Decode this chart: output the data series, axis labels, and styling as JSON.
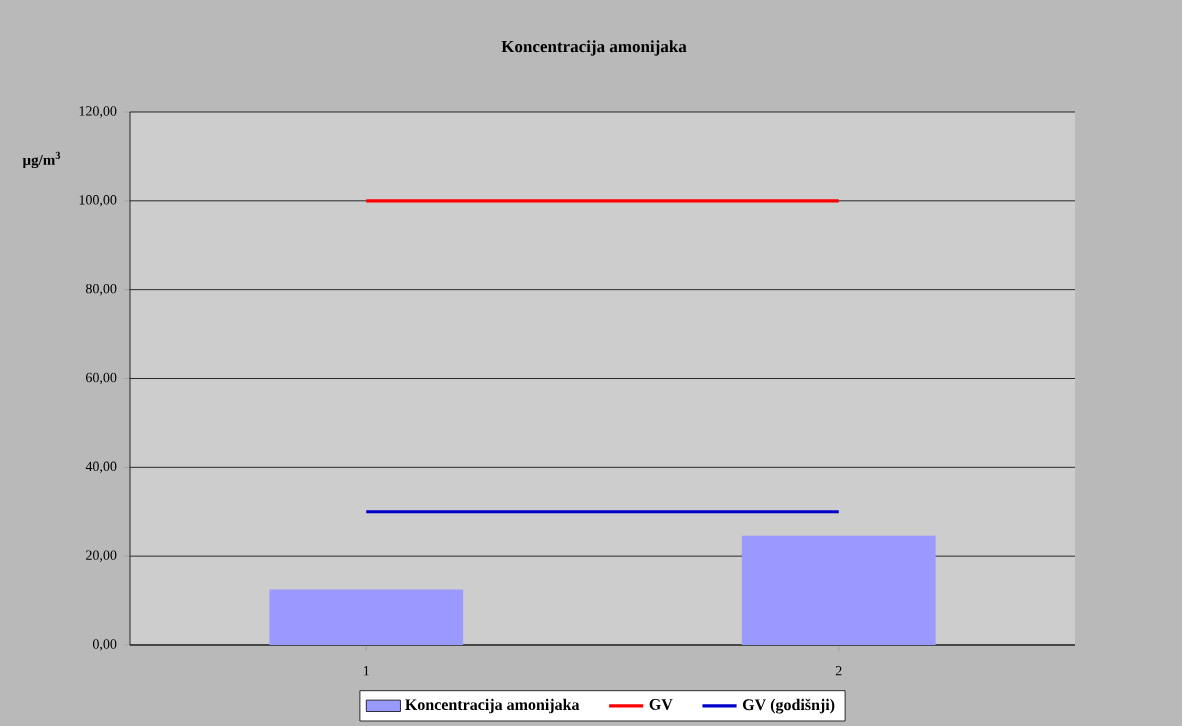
{
  "chart_data": {
    "type": "bar",
    "title": "Koncentracija amonijaka",
    "ylabel": "µg/m$^{3}$",
    "categories": [
      "1",
      "2"
    ],
    "series": [
      {
        "name": "Koncentracija amonijaka",
        "color": "#9999ff",
        "values": [
          12.5,
          24.6
        ]
      },
      {
        "name": "GV",
        "type": "line",
        "color": "#ff0000",
        "values": [
          100,
          100
        ]
      },
      {
        "name": "GV (godišnji)",
        "type": "line",
        "color": "#0000cc",
        "values": [
          30,
          30
        ]
      }
    ],
    "ylim": [
      0,
      120
    ],
    "yticks": [
      {
        "value": 0,
        "label": "0,00"
      },
      {
        "value": 20,
        "label": "20,00"
      },
      {
        "value": 40,
        "label": "40,00"
      },
      {
        "value": 60,
        "label": "60,00"
      },
      {
        "value": 80,
        "label": "80,00"
      },
      {
        "value": 100,
        "label": "100,00"
      },
      {
        "value": 120,
        "label": "120,00"
      }
    ],
    "grid": "y",
    "legend": "bottom"
  }
}
